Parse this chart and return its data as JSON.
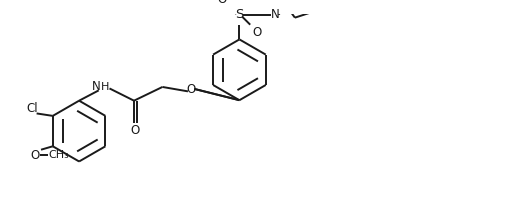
{
  "bg_color": "#ffffff",
  "line_color": "#1a1a1a",
  "line_width": 1.4,
  "font_size": 8.5,
  "fig_width": 5.21,
  "fig_height": 2.21,
  "dpi": 100,
  "xlim": [
    0,
    10.5
  ],
  "ylim": [
    0,
    4.2
  ]
}
